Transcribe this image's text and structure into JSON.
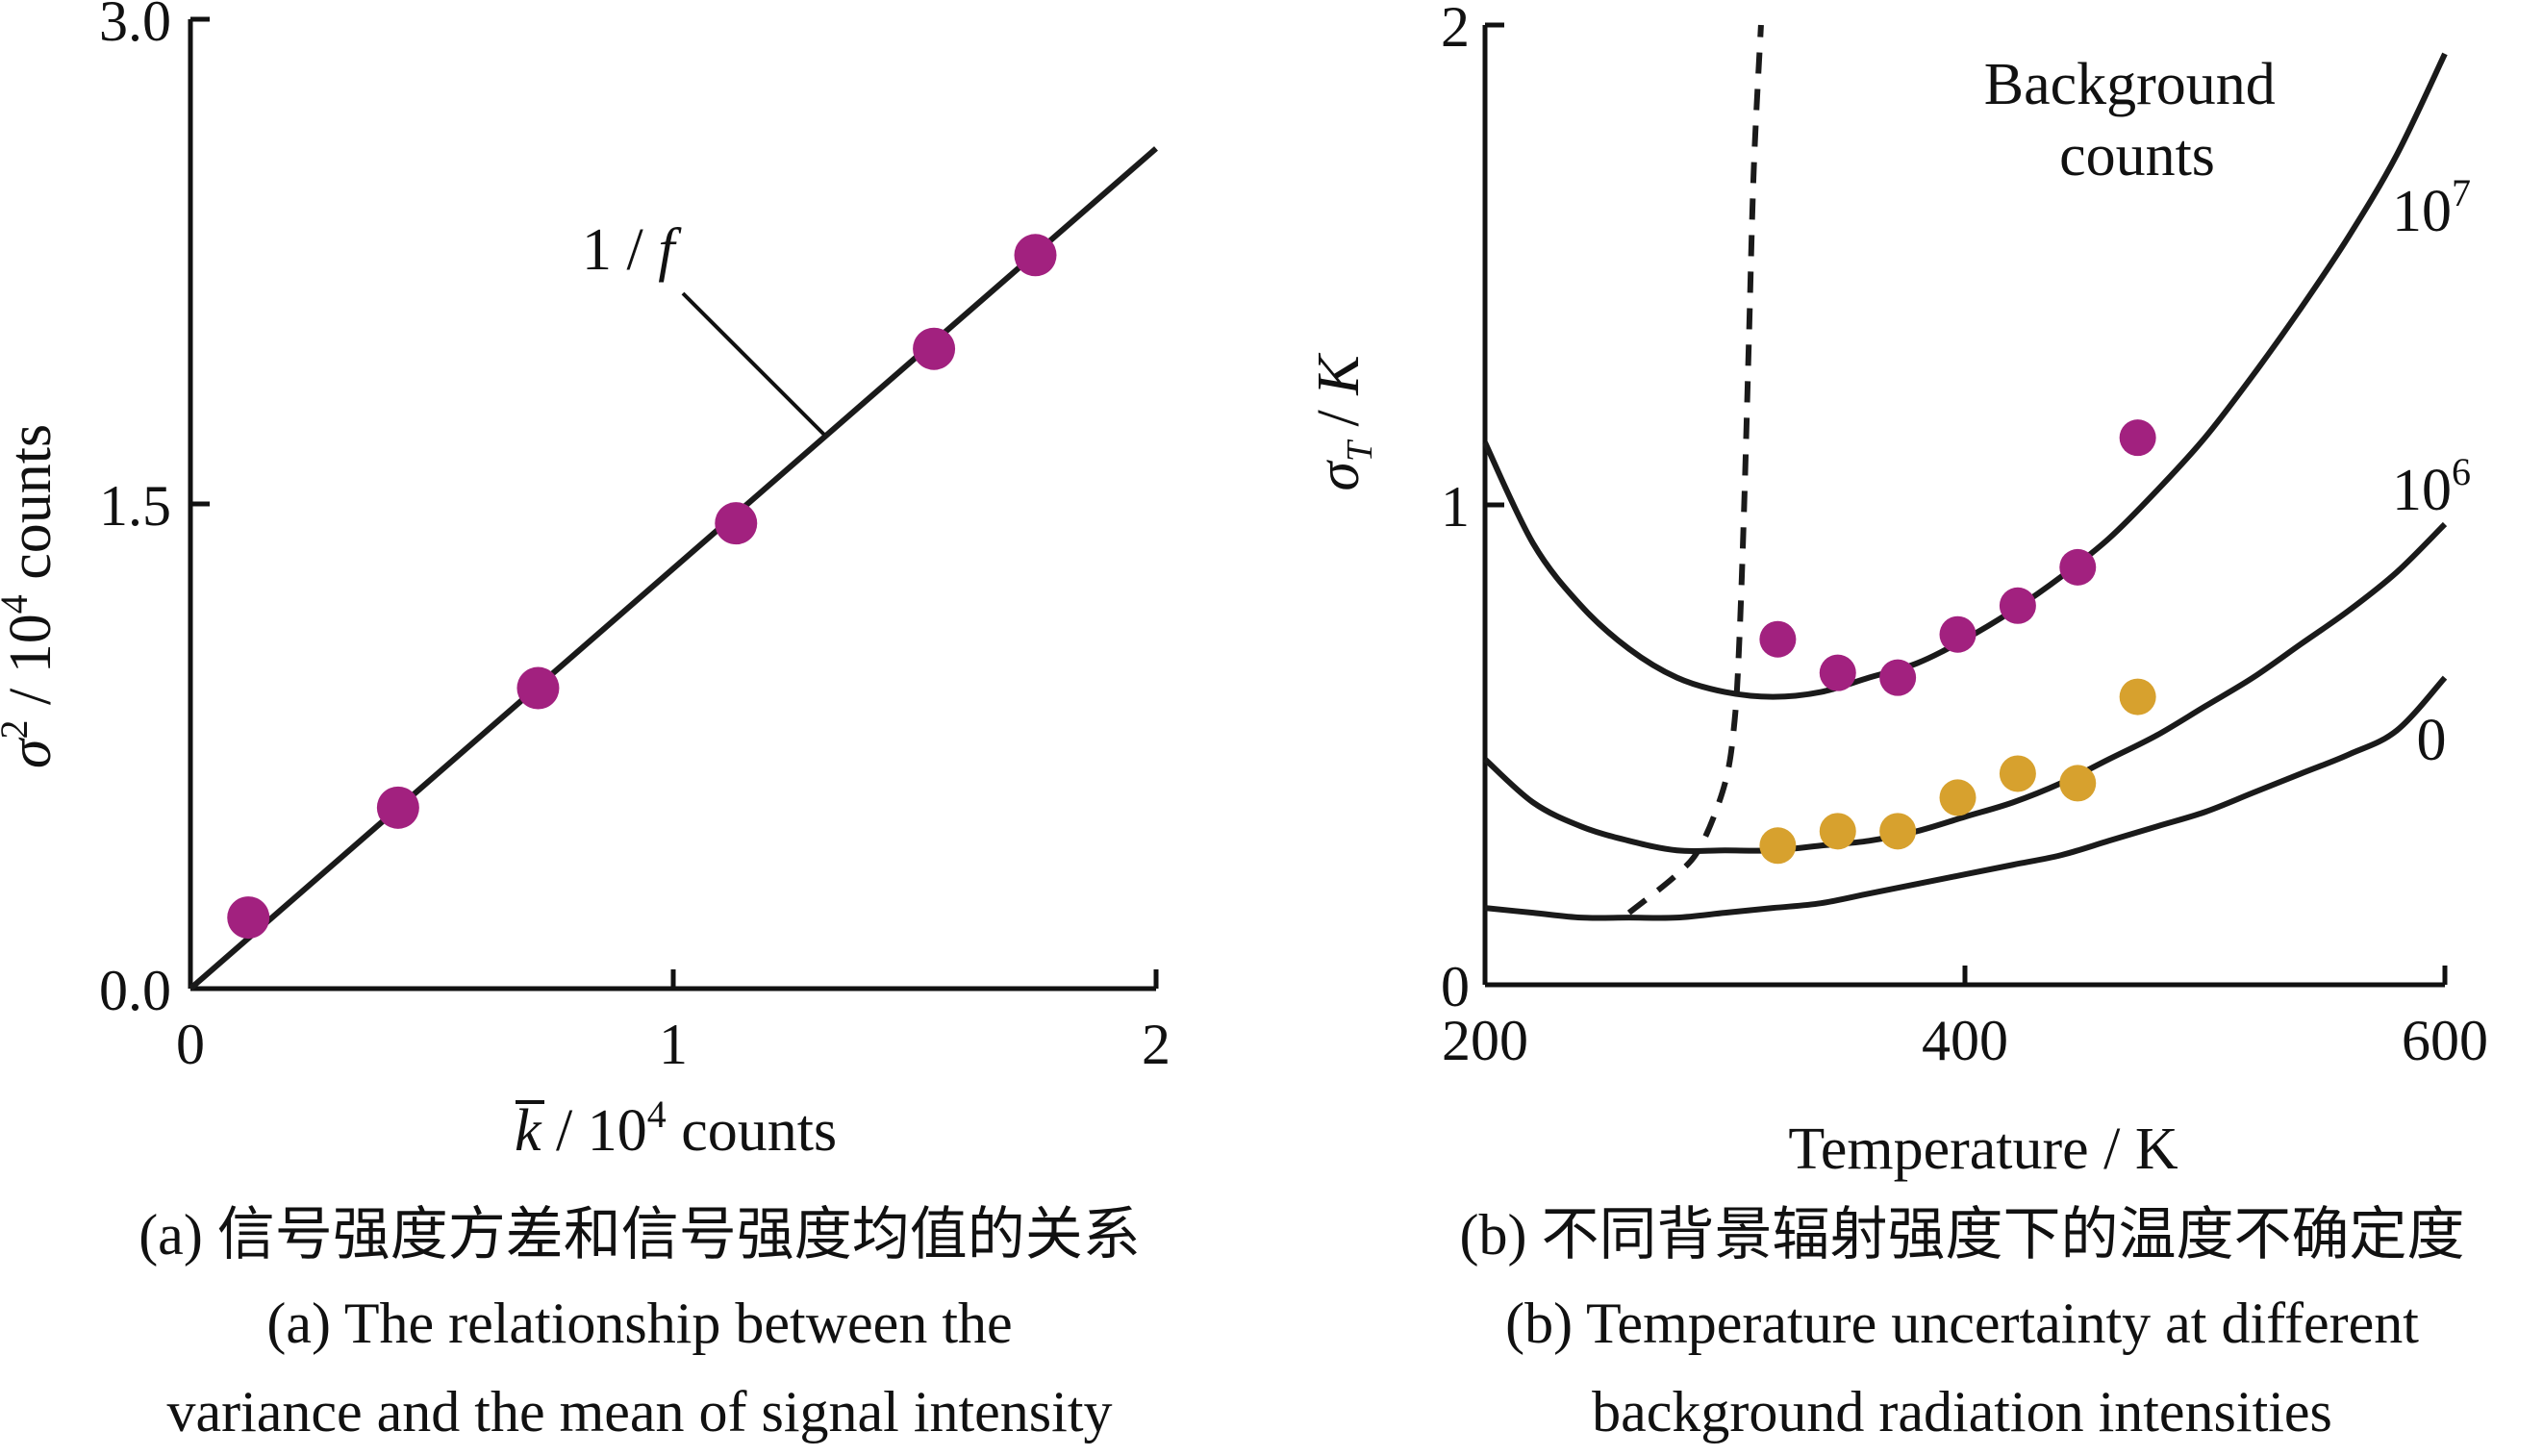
{
  "colors": {
    "axis": "#111111",
    "line": "#1a1a1a",
    "purple": "#a2217f",
    "gold": "#d7a12e"
  },
  "chart_data": [
    {
      "type": "scatter",
      "panel": "a",
      "xlabel_var": "k",
      "xlabel_unit": " / 10",
      "xlabel_exp": "4",
      "xlabel_tail": " counts",
      "ylabel_var": "σ",
      "ylabel_sup": "2",
      "ylabel_unit": " / 10",
      "ylabel_exp": "4",
      "ylabel_tail": " counts",
      "xlim": [
        0,
        2
      ],
      "ylim": [
        0,
        3.0
      ],
      "xticks": [
        "0",
        "1",
        "2"
      ],
      "yticks": [
        "0.0",
        "1.5",
        "3.0"
      ],
      "annotation_num": "1 / ",
      "annotation_var": "f",
      "fit_line": {
        "slope": 1.3,
        "intercept": 0
      },
      "points": [
        {
          "x": 0.12,
          "y": 0.22
        },
        {
          "x": 0.43,
          "y": 0.56
        },
        {
          "x": 0.72,
          "y": 0.93
        },
        {
          "x": 1.13,
          "y": 1.44
        },
        {
          "x": 1.54,
          "y": 1.98
        },
        {
          "x": 1.75,
          "y": 2.27
        }
      ],
      "caption_cn": "(a) 信号强度方差和信号强度均值的关系",
      "caption_en1": "(a) The relationship between the",
      "caption_en2": "variance and the mean of signal intensity"
    },
    {
      "type": "line",
      "panel": "b",
      "xlabel": "Temperature / K",
      "ylabel_var": "σ",
      "ylabel_sub": "T",
      "ylabel_unit": " / ",
      "ylabel_unitvar": "K",
      "xlim": [
        200,
        600
      ],
      "ylim": [
        0,
        2
      ],
      "xticks": [
        "200",
        "400",
        "600"
      ],
      "yticks": [
        "0",
        "1",
        "2"
      ],
      "legend_title_1": "Background",
      "legend_title_2": "counts",
      "series": [
        {
          "name": "10",
          "exp": "7",
          "x": [
            200,
            220,
            240,
            260,
            280,
            300,
            320,
            340,
            360,
            380,
            400,
            420,
            440,
            460,
            480,
            500,
            520,
            540,
            560,
            580,
            600
          ],
          "y": [
            1.13,
            0.92,
            0.79,
            0.7,
            0.64,
            0.61,
            0.6,
            0.61,
            0.64,
            0.67,
            0.72,
            0.78,
            0.85,
            0.93,
            1.03,
            1.14,
            1.27,
            1.41,
            1.56,
            1.73,
            1.94
          ]
        },
        {
          "name": "10",
          "exp": "6",
          "x": [
            200,
            220,
            240,
            260,
            280,
            300,
            320,
            340,
            360,
            380,
            400,
            420,
            440,
            460,
            480,
            500,
            520,
            540,
            560,
            580,
            600
          ],
          "y": [
            0.47,
            0.38,
            0.33,
            0.3,
            0.28,
            0.28,
            0.28,
            0.29,
            0.3,
            0.32,
            0.35,
            0.38,
            0.42,
            0.47,
            0.52,
            0.58,
            0.64,
            0.71,
            0.78,
            0.86,
            0.96
          ]
        },
        {
          "name": "0",
          "exp": "",
          "x": [
            200,
            220,
            240,
            260,
            280,
            300,
            320,
            340,
            360,
            380,
            400,
            420,
            440,
            460,
            480,
            500,
            520,
            540,
            560,
            580,
            600
          ],
          "y": [
            0.16,
            0.15,
            0.14,
            0.14,
            0.14,
            0.15,
            0.16,
            0.17,
            0.19,
            0.21,
            0.23,
            0.25,
            0.27,
            0.3,
            0.33,
            0.36,
            0.4,
            0.44,
            0.48,
            0.53,
            0.64
          ]
        }
      ],
      "boundary_dashed": {
        "x": [
          260,
          280,
          290,
          300,
          304,
          306,
          308,
          310,
          312,
          315
        ],
        "y": [
          0.15,
          0.23,
          0.29,
          0.42,
          0.55,
          0.72,
          1.0,
          1.35,
          1.7,
          2.0
        ]
      },
      "points_purple": [
        {
          "x": 322,
          "y": 0.72
        },
        {
          "x": 347,
          "y": 0.65
        },
        {
          "x": 372,
          "y": 0.64
        },
        {
          "x": 397,
          "y": 0.73
        },
        {
          "x": 422,
          "y": 0.79
        },
        {
          "x": 447,
          "y": 0.87
        },
        {
          "x": 472,
          "y": 1.14
        }
      ],
      "points_gold": [
        {
          "x": 322,
          "y": 0.29
        },
        {
          "x": 347,
          "y": 0.32
        },
        {
          "x": 372,
          "y": 0.32
        },
        {
          "x": 397,
          "y": 0.39
        },
        {
          "x": 422,
          "y": 0.44
        },
        {
          "x": 447,
          "y": 0.42
        },
        {
          "x": 472,
          "y": 0.6
        }
      ],
      "caption_cn": "(b) 不同背景辐射强度下的温度不确定度",
      "caption_en1": "(b) Temperature uncertainty at different",
      "caption_en2": "background radiation intensities"
    }
  ]
}
